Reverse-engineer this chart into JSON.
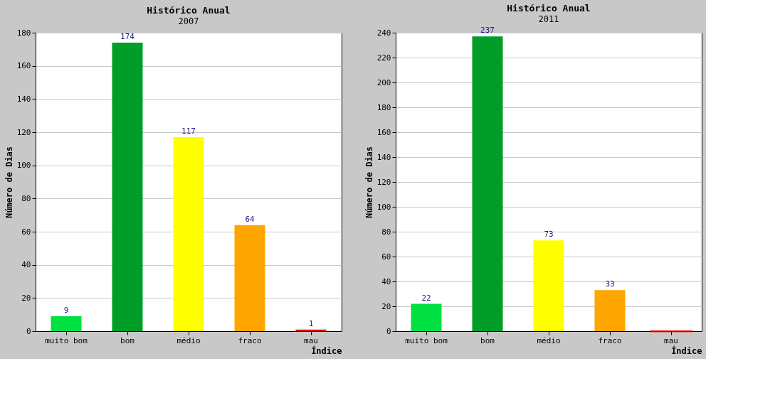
{
  "chart_data": [
    {
      "type": "bar",
      "title": "Histórico Anual",
      "subtitle": "2007",
      "xlabel": "Índice",
      "ylabel": "Número de Dias",
      "categories": [
        "muito bom",
        "bom",
        "médio",
        "fraco",
        "mau"
      ],
      "values": [
        9,
        174,
        117,
        64,
        1
      ],
      "colors": [
        "#00e040",
        "#009e28",
        "#ffff00",
        "#ffa500",
        "#ff0000"
      ],
      "ylim": [
        0,
        180
      ],
      "yticks": [
        0,
        20,
        40,
        60,
        80,
        100,
        120,
        140,
        160,
        180
      ],
      "grid": "y",
      "data_labels": true
    },
    {
      "type": "bar",
      "title": "Histórico Anual",
      "subtitle": "2011",
      "xlabel": "Índice",
      "ylabel": "Número de Dias",
      "categories": [
        "muito bom",
        "bom",
        "médio",
        "fraco",
        "mau"
      ],
      "values": [
        22,
        237,
        73,
        33,
        0
      ],
      "value_labels": [
        "22",
        "237",
        "73",
        "33",
        null
      ],
      "colors": [
        "#00e040",
        "#009e28",
        "#ffff00",
        "#ffa500",
        "#ff0000"
      ],
      "ylim": [
        0,
        240
      ],
      "yticks": [
        0,
        20,
        40,
        60,
        80,
        100,
        120,
        140,
        160,
        180,
        200,
        220,
        240
      ],
      "grid": "y"
    }
  ]
}
